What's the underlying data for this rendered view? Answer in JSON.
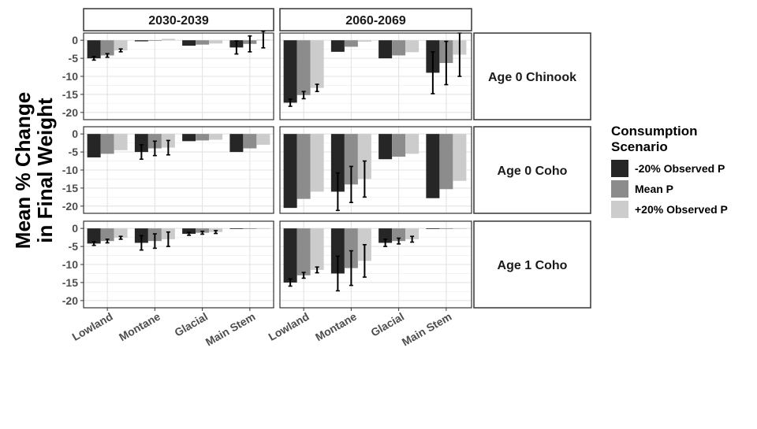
{
  "chart_data": {
    "type": "bar",
    "ylabel": [
      "Mean % Change",
      "in Final Weight"
    ],
    "ylim": [
      -22,
      2
    ],
    "yticks": [
      0,
      -5,
      -10,
      -15,
      -20
    ],
    "column_panels": [
      "2030-2039",
      "2060-2069"
    ],
    "row_panels": [
      "Age 0 Chinook",
      "Age 0 Coho",
      "Age 1 Coho"
    ],
    "categories": [
      "Lowland",
      "Montane",
      "Glacial",
      "Main Stem"
    ],
    "legend": {
      "title": [
        "Consumption",
        "Scenario"
      ],
      "entries": [
        "-20% Observed P",
        "Mean P",
        "+20% Observed P"
      ]
    },
    "series_colors": [
      "#262626",
      "#8c8c8c",
      "#cccccc"
    ],
    "panels": [
      {
        "period": "2030-2039",
        "group": "Age 0 Chinook",
        "values": [
          [
            -5.0,
            -4.2,
            -2.8
          ],
          [
            -0.3,
            -0.1,
            0.4
          ],
          [
            -1.5,
            -1.2,
            -0.9
          ],
          [
            -2.0,
            -1.0,
            0.2
          ]
        ],
        "errors": [
          [
            0.5,
            0.5,
            0.4
          ],
          [
            0,
            0,
            0
          ],
          [
            0,
            0,
            0
          ],
          [
            1.8,
            2.2,
            2.3
          ]
        ]
      },
      {
        "period": "2060-2069",
        "group": "Age 0 Chinook",
        "values": [
          [
            -17.3,
            -15.2,
            -13.2
          ],
          [
            -3.2,
            -1.8,
            -0.4
          ],
          [
            -5.0,
            -4.2,
            -3.3
          ],
          [
            -9.0,
            -6.3,
            -4.0
          ]
        ],
        "errors": [
          [
            1.0,
            1.0,
            1.0
          ],
          [
            0,
            0,
            0
          ],
          [
            0,
            0,
            0
          ],
          [
            5.8,
            6.0,
            6.0
          ]
        ]
      },
      {
        "period": "2030-2039",
        "group": "Age 0 Coho",
        "values": [
          [
            -6.5,
            -5.5,
            -4.5
          ],
          [
            -5.0,
            -4.0,
            -3.8
          ],
          [
            -2.0,
            -1.8,
            -1.6
          ],
          [
            -5.0,
            -4.0,
            -3.0
          ]
        ],
        "errors": [
          [
            0,
            0,
            0
          ],
          [
            2.0,
            2.0,
            2.0
          ],
          [
            0,
            0,
            0
          ],
          [
            0,
            0,
            0
          ]
        ]
      },
      {
        "period": "2060-2069",
        "group": "Age 0 Coho",
        "values": [
          [
            -20.5,
            -18.0,
            -16.0
          ],
          [
            -16.0,
            -14.0,
            -12.5
          ],
          [
            -7.0,
            -6.3,
            -5.5
          ],
          [
            -17.8,
            -15.3,
            -13.0
          ]
        ],
        "errors": [
          [
            0,
            0,
            0
          ],
          [
            5.2,
            5.0,
            5.0
          ],
          [
            0,
            0,
            0
          ],
          [
            0,
            0,
            0
          ]
        ]
      },
      {
        "period": "2030-2039",
        "group": "Age 1 Coho",
        "values": [
          [
            -4.2,
            -3.5,
            -2.6
          ],
          [
            -4.0,
            -3.5,
            -3.0
          ],
          [
            -1.5,
            -1.2,
            -1.0
          ],
          [
            0,
            0,
            0
          ]
        ],
        "errors": [
          [
            0.5,
            0.5,
            0.4
          ],
          [
            2.0,
            2.0,
            2.0
          ],
          [
            0.4,
            0.4,
            0.4
          ],
          [
            0,
            0,
            0
          ]
        ]
      },
      {
        "period": "2060-2069",
        "group": "Age 1 Coho",
        "values": [
          [
            -15.0,
            -13.0,
            -11.5
          ],
          [
            -12.5,
            -11.0,
            -9.0
          ],
          [
            -4.0,
            -3.5,
            -3.0
          ],
          [
            0,
            0,
            0
          ]
        ],
        "errors": [
          [
            1.0,
            0.8,
            0.8
          ],
          [
            4.8,
            4.8,
            4.5
          ],
          [
            1.0,
            0.8,
            0.8
          ],
          [
            0,
            0,
            0
          ]
        ]
      }
    ]
  }
}
